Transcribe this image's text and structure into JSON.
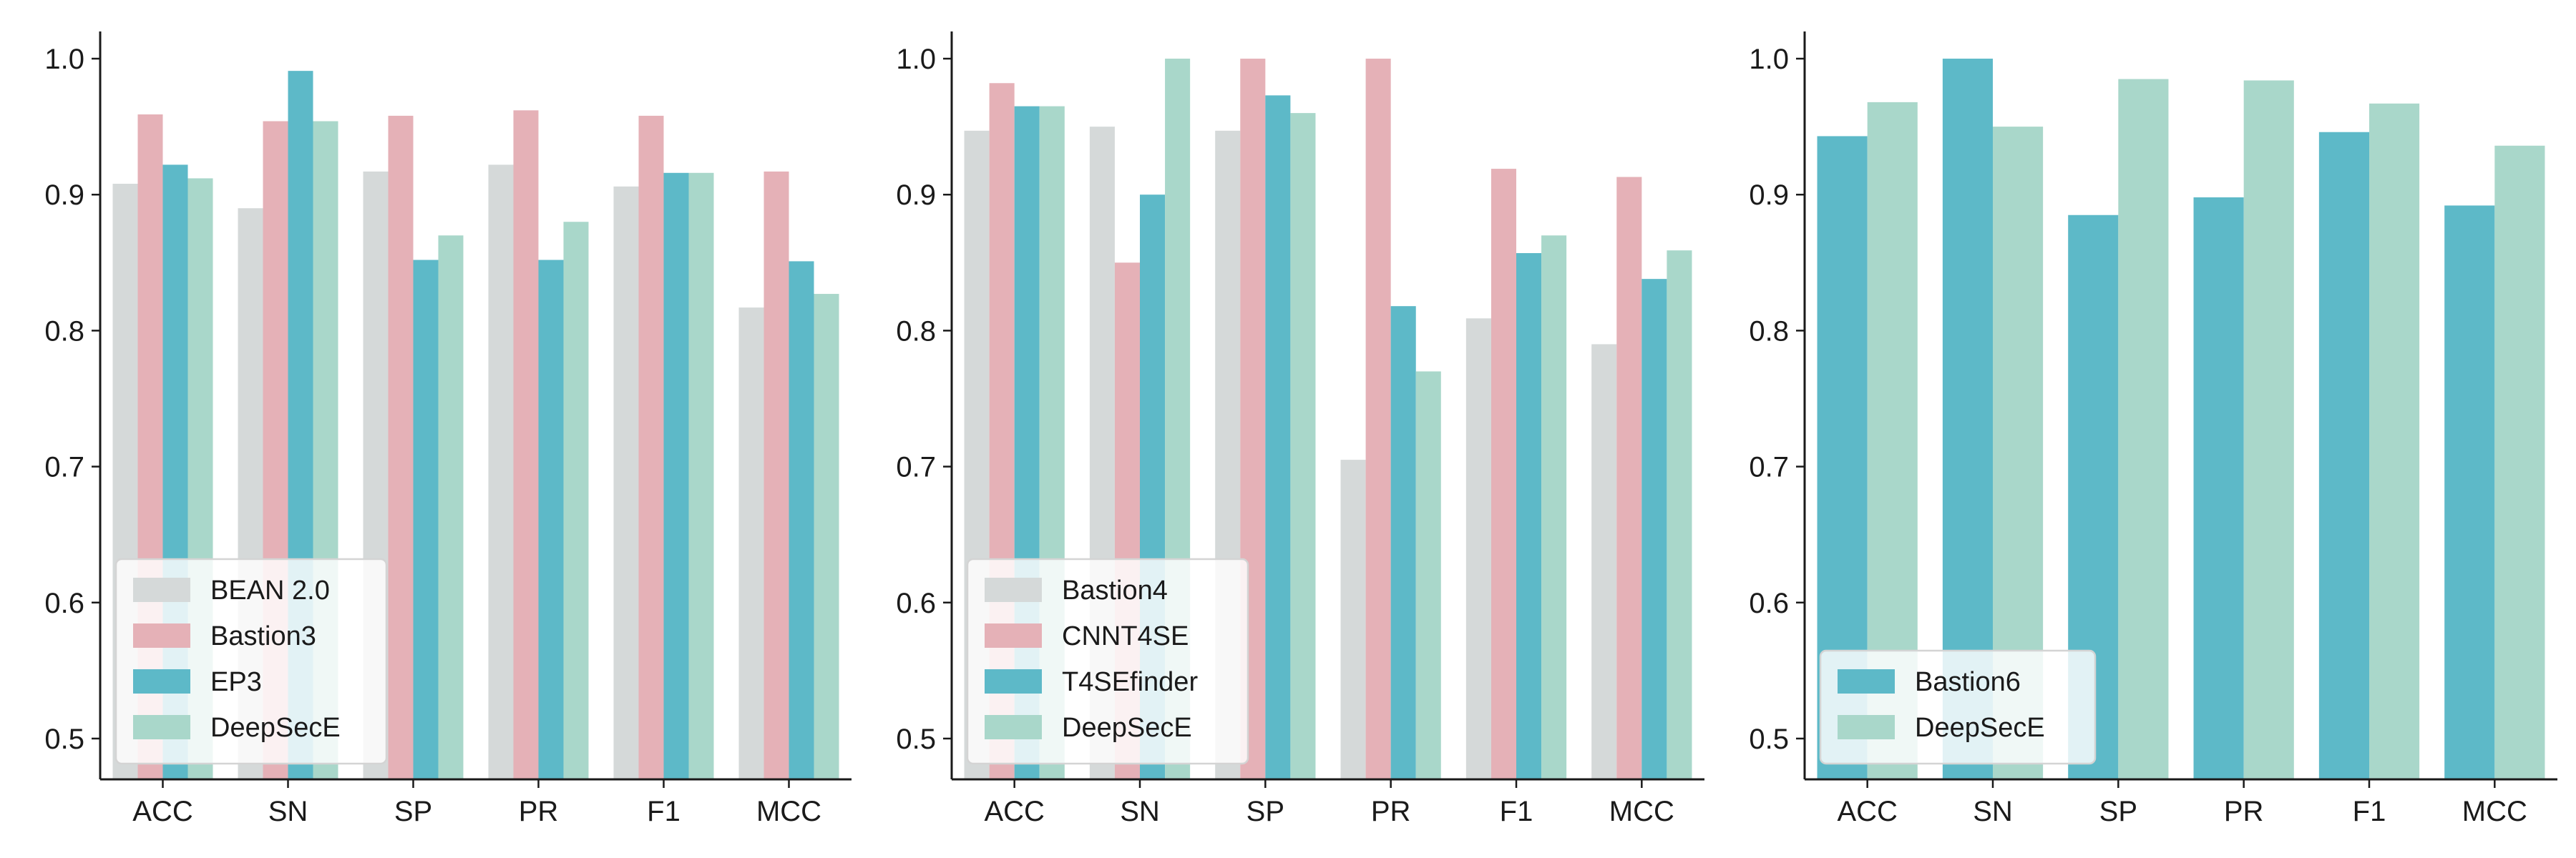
{
  "chart_data": [
    {
      "type": "bar",
      "categories": [
        "ACC",
        "SN",
        "SP",
        "PR",
        "F1",
        "MCC"
      ],
      "ylim": [
        0.47,
        1.02
      ],
      "yticks": [
        0.5,
        0.6,
        0.7,
        0.8,
        0.9,
        1.0
      ],
      "ytick_labels": [
        "0.5",
        "0.6",
        "0.7",
        "0.8",
        "0.9",
        "1.0"
      ],
      "legend_position": "lower-left",
      "series": [
        {
          "name": "BEAN 2.0",
          "color": "#d5d9d9",
          "values": [
            0.908,
            0.89,
            0.917,
            0.922,
            0.906,
            0.817
          ]
        },
        {
          "name": "Bastion3",
          "color": "#e5b1b7",
          "values": [
            0.959,
            0.954,
            0.958,
            0.962,
            0.958,
            0.917
          ]
        },
        {
          "name": "EP3",
          "color": "#5db9c8",
          "values": [
            0.922,
            0.991,
            0.852,
            0.852,
            0.916,
            0.851
          ]
        },
        {
          "name": "DeepSecE",
          "color": "#a9d7ca",
          "values": [
            0.912,
            0.954,
            0.87,
            0.88,
            0.916,
            0.827
          ]
        }
      ]
    },
    {
      "type": "bar",
      "categories": [
        "ACC",
        "SN",
        "SP",
        "PR",
        "F1",
        "MCC"
      ],
      "ylim": [
        0.47,
        1.02
      ],
      "yticks": [
        0.5,
        0.6,
        0.7,
        0.8,
        0.9,
        1.0
      ],
      "ytick_labels": [
        "0.5",
        "0.6",
        "0.7",
        "0.8",
        "0.9",
        "1.0"
      ],
      "legend_position": "lower-left",
      "series": [
        {
          "name": "Bastion4",
          "color": "#d5d9d9",
          "values": [
            0.947,
            0.95,
            0.947,
            0.705,
            0.809,
            0.79
          ]
        },
        {
          "name": "CNNT4SE",
          "color": "#e5b1b7",
          "values": [
            0.982,
            0.85,
            1.0,
            1.0,
            0.919,
            0.913
          ]
        },
        {
          "name": "T4SEfinder",
          "color": "#5db9c8",
          "values": [
            0.965,
            0.9,
            0.973,
            0.818,
            0.857,
            0.838
          ]
        },
        {
          "name": "DeepSecE",
          "color": "#a9d7ca",
          "values": [
            0.965,
            1.0,
            0.96,
            0.77,
            0.87,
            0.859
          ]
        }
      ]
    },
    {
      "type": "bar",
      "categories": [
        "ACC",
        "SN",
        "SP",
        "PR",
        "F1",
        "MCC"
      ],
      "ylim": [
        0.47,
        1.02
      ],
      "yticks": [
        0.5,
        0.6,
        0.7,
        0.8,
        0.9,
        1.0
      ],
      "ytick_labels": [
        "0.5",
        "0.6",
        "0.7",
        "0.8",
        "0.9",
        "1.0"
      ],
      "legend_position": "lower-left",
      "series": [
        {
          "name": "Bastion6",
          "color": "#5db9c8",
          "values": [
            0.943,
            1.0,
            0.885,
            0.898,
            0.946,
            0.892
          ]
        },
        {
          "name": "DeepSecE",
          "color": "#a9d7ca",
          "values": [
            0.968,
            0.95,
            0.985,
            0.984,
            0.967,
            0.936
          ]
        }
      ]
    }
  ]
}
